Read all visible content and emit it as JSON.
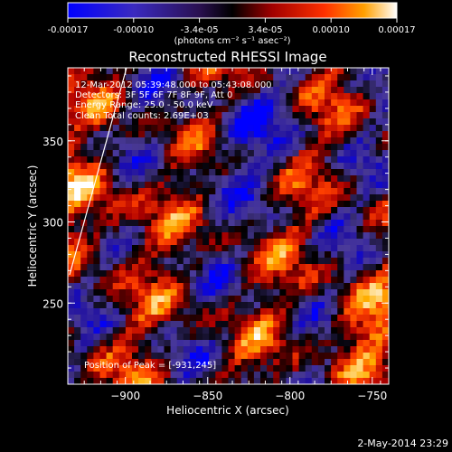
{
  "chart_data": {
    "type": "heatmap",
    "title": "Reconstructed RHESSI Image",
    "xlabel": "Heliocentric X (arcsec)",
    "ylabel": "Heliocentric Y (arcsec)",
    "xlim": [
      -935,
      -740
    ],
    "ylim": [
      200,
      395
    ],
    "xticks": [
      -900,
      -850,
      -800,
      -750
    ],
    "yticks": [
      250,
      300,
      350
    ],
    "colorbar": {
      "ticks": [
        "-0.00017",
        "-0.00010",
        "-3.4e-05",
        "3.4e-05",
        "0.00010",
        "0.00017"
      ],
      "label": "(photons cm⁻² s⁻¹ asec⁻²)",
      "range": [
        -0.00017,
        0.00017
      ]
    },
    "annotations": {
      "time_range": "12-Mar-2012 05:39:48.000 to 05:43:08.000",
      "detectors": "Detectors: 3F 5F 6F 7F 8F 9F, Att 0",
      "energy": "Energy Range: 25.0 - 50.0 keV",
      "method": "Clean    Total counts: 2.69E+03",
      "peak": "Position of Peak = [-931,245]"
    },
    "limb": {
      "color": "#ffffff"
    },
    "colormap": [
      "#0000ff",
      "#2010a0",
      "#4a3a9a",
      "#000000",
      "#b00000",
      "#ff4000",
      "#ffb000",
      "#ffffff"
    ]
  },
  "footer": {
    "date": "2-May-2014 23:29"
  }
}
